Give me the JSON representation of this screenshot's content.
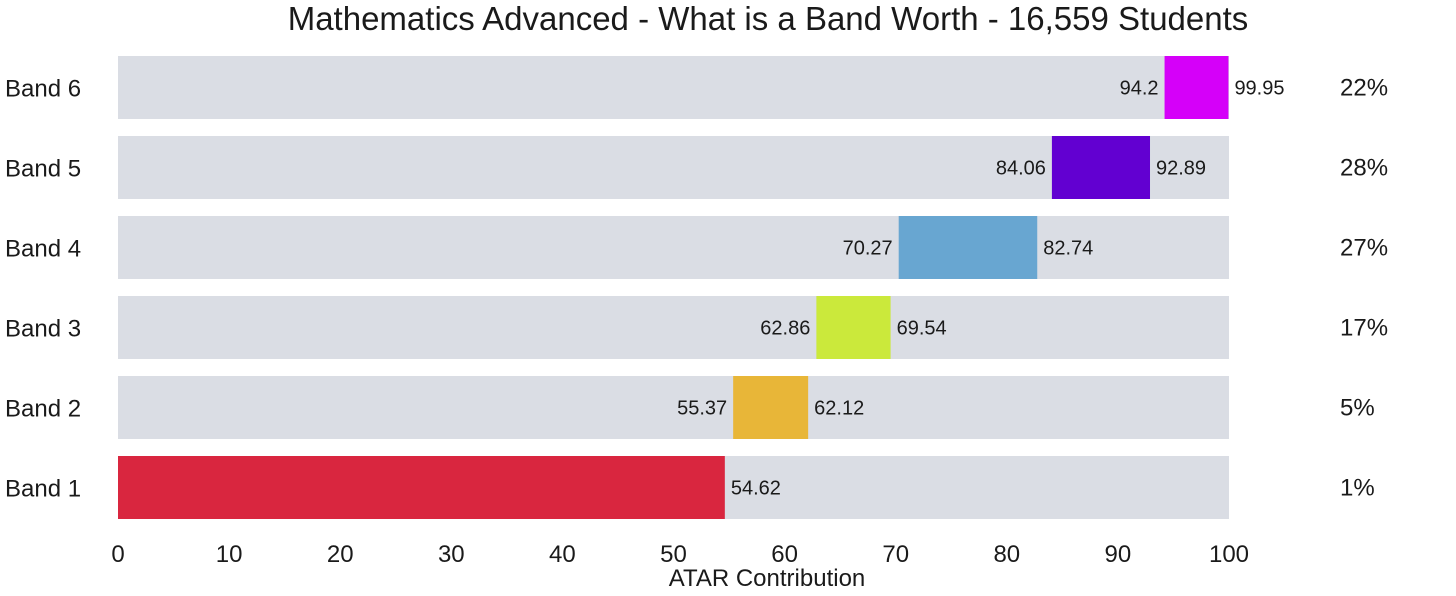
{
  "chart_data": {
    "type": "bar",
    "orientation": "horizontal-range",
    "title": "Mathematics Advanced - What is a Band Worth - 16,559 Students",
    "xlabel": "ATAR Contribution",
    "ylabel": "",
    "xlim": [
      0,
      100
    ],
    "xticks": [
      "0",
      "10",
      "20",
      "30",
      "40",
      "50",
      "60",
      "70",
      "80",
      "90",
      "100"
    ],
    "background_color": "#dadde4",
    "bands": [
      {
        "name": "Band 6",
        "start": 94.2,
        "end": 99.95,
        "start_label": "94.2",
        "end_label": "99.95",
        "percent": "22%",
        "color": "#d500f9"
      },
      {
        "name": "Band 5",
        "start": 84.06,
        "end": 92.89,
        "start_label": "84.06",
        "end_label": "92.89",
        "percent": "28%",
        "color": "#6200d1"
      },
      {
        "name": "Band 4",
        "start": 70.27,
        "end": 82.74,
        "start_label": "70.27",
        "end_label": "82.74",
        "percent": "27%",
        "color": "#68a6d1"
      },
      {
        "name": "Band 3",
        "start": 62.86,
        "end": 69.54,
        "start_label": "62.86",
        "end_label": "69.54",
        "percent": "17%",
        "color": "#cbe93b"
      },
      {
        "name": "Band 2",
        "start": 55.37,
        "end": 62.12,
        "start_label": "55.37",
        "end_label": "62.12",
        "percent": "5%",
        "color": "#e8b638"
      },
      {
        "name": "Band 1",
        "start": 0,
        "end": 54.62,
        "start_label": "",
        "end_label": "54.62",
        "percent": "1%",
        "color": "#d9263f"
      }
    ]
  }
}
